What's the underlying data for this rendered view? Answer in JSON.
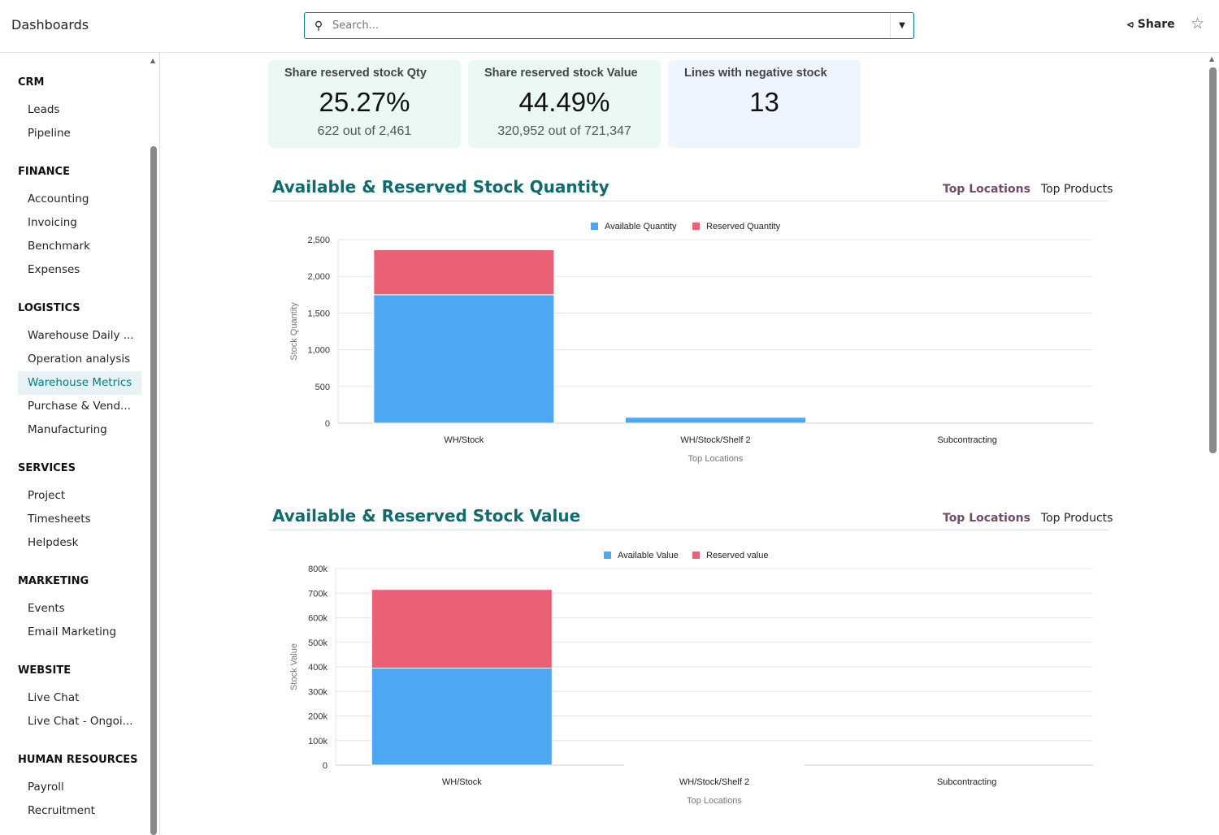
{
  "header": {
    "title": "Dashboards",
    "search_placeholder": "Search...",
    "share_label": "Share"
  },
  "sidebar": [
    {
      "section": "CRM",
      "items": [
        "Leads",
        "Pipeline"
      ]
    },
    {
      "section": "FINANCE",
      "items": [
        "Accounting",
        "Invoicing",
        "Benchmark",
        "Expenses"
      ]
    },
    {
      "section": "LOGISTICS",
      "items": [
        "Warehouse Daily ...",
        "Operation analysis",
        "Warehouse Metrics",
        "Purchase & Vend...",
        "Manufacturing"
      ]
    },
    {
      "section": "SERVICES",
      "items": [
        "Project",
        "Timesheets",
        "Helpdesk"
      ]
    },
    {
      "section": "MARKETING",
      "items": [
        "Events",
        "Email Marketing"
      ]
    },
    {
      "section": "WEBSITE",
      "items": [
        "Live Chat",
        "Live Chat - Ongoi..."
      ]
    },
    {
      "section": "HUMAN RESOURCES",
      "items": [
        "Payroll",
        "Recruitment"
      ]
    }
  ],
  "active_item": "Warehouse Metrics",
  "kpis": [
    {
      "title": "Share reserved stock Qty",
      "value": "25.27%",
      "sub": "622 out of 2,461",
      "color": "#eafaf3"
    },
    {
      "title": "Share reserved stock Value",
      "value": "44.49%",
      "sub": "320,952 out of 721,347",
      "color": "#eafaf3"
    },
    {
      "title": "Lines with negative stock",
      "value": "13",
      "sub": "",
      "color": "#eef5ff"
    }
  ],
  "sections": [
    {
      "title": "Available & Reserved Stock Quantity",
      "tabs": [
        "Top Locations",
        "Top Products"
      ]
    },
    {
      "title": "Available & Reserved Stock Value",
      "tabs": [
        "Top Locations",
        "Top Products"
      ]
    }
  ],
  "chart_data": [
    {
      "type": "bar",
      "stacked": true,
      "categories": [
        "WH/Stock",
        "WH/Stock/Shelf 2",
        "Subcontracting"
      ],
      "series": [
        {
          "name": "Available Quantity",
          "values": [
            1750,
            80,
            0
          ],
          "color": "#4ea7f2"
        },
        {
          "name": "Reserved Quantity",
          "values": [
            612,
            0,
            0
          ],
          "color": "#ea6175"
        }
      ],
      "xlabel": "Top Locations",
      "ylabel": "Stock Quantity",
      "ylim": [
        0,
        2500
      ],
      "yticks": [
        0,
        500,
        1000,
        1500,
        2000,
        2500
      ],
      "ytick_labels": [
        "0",
        "500",
        "1,000",
        "1,500",
        "2,000",
        "2,500"
      ],
      "grid": true,
      "legend": "top"
    },
    {
      "type": "bar",
      "stacked": true,
      "categories": [
        "WH/Stock",
        "WH/Stock/Shelf 2",
        "Subcontracting"
      ],
      "series": [
        {
          "name": "Available Value",
          "values": [
            395000,
            2000,
            0
          ],
          "color": "#4ea7f2"
        },
        {
          "name": "Reserved value",
          "values": [
            320000,
            0,
            0
          ],
          "color": "#ea6175"
        }
      ],
      "xlabel": "Top Locations",
      "ylabel": "Stock Value",
      "ylim": [
        0,
        800000
      ],
      "yticks": [
        0,
        100000,
        200000,
        300000,
        400000,
        500000,
        600000,
        700000,
        800000
      ],
      "ytick_labels": [
        "0",
        "100k",
        "200k",
        "300k",
        "400k",
        "500k",
        "600k",
        "700k",
        "800k"
      ],
      "grid": true,
      "legend": "top"
    }
  ]
}
